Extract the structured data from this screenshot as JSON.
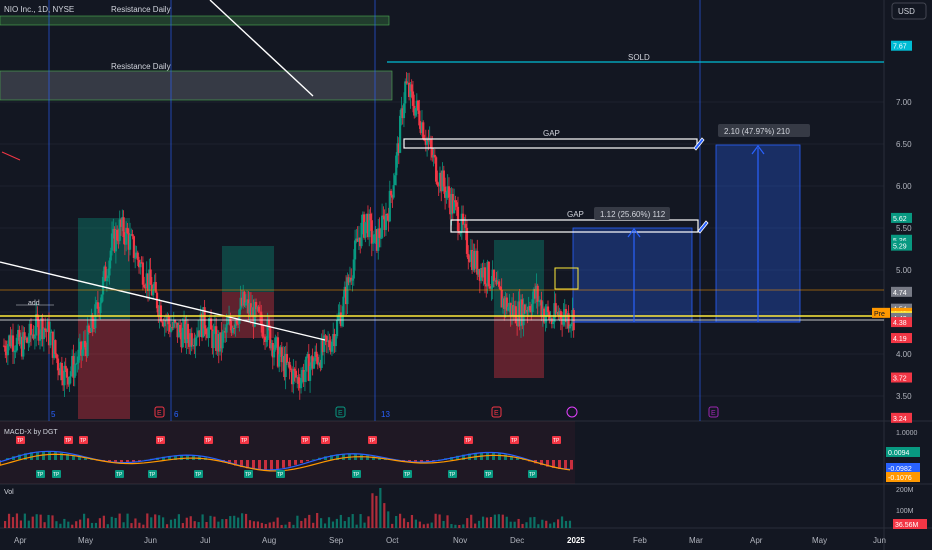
{
  "header": {
    "symbol": "NIO Inc., 1D, NYSE",
    "currency_button": "USD"
  },
  "chart_data": [
    {
      "type": "candlestick",
      "title": "NIO Inc., 1D, NYSE",
      "x_axis_labels": [
        "Apr",
        "May",
        "Jun",
        "Jul",
        "Aug",
        "Sep",
        "Oct",
        "Nov",
        "Dec",
        "2025",
        "Feb",
        "Mar",
        "Apr",
        "May",
        "Jun"
      ],
      "y_axis_ticks": [
        "7.00",
        "6.50",
        "6.00",
        "5.50",
        "5.00",
        "4.50",
        "4.00",
        "3.50"
      ],
      "ylim": [
        3.24,
        8.2
      ],
      "price_badges": [
        {
          "label": "7.67",
          "value": 7.67,
          "color": "#00bcd4"
        },
        {
          "label": "5.62",
          "value": 5.62,
          "color": "#089981"
        },
        {
          "label": "5.36",
          "value": 5.36,
          "color": "#089981"
        },
        {
          "label": "5.29",
          "value": 5.29,
          "color": "#089981"
        },
        {
          "label": "4.74",
          "value": 4.74,
          "color": "#787b86"
        },
        {
          "label": "4.54",
          "value": 4.54,
          "color": "#787b86"
        },
        {
          "label": "4.49",
          "value": 4.49,
          "color": "#ff9800",
          "tag": "Pre"
        },
        {
          "label": "4.45",
          "value": 4.45,
          "color": "#ffeb3b"
        },
        {
          "label": "4.43",
          "value": 4.43,
          "color": "#787b86"
        },
        {
          "label": "4.38",
          "value": 4.38,
          "color": "#f23645"
        },
        {
          "label": "4.19",
          "value": 4.19,
          "color": "#f23645"
        },
        {
          "label": "3.72",
          "value": 3.72,
          "color": "#f23645"
        },
        {
          "label": "3.24",
          "value": 3.24,
          "color": "#f23645"
        }
      ],
      "annotations": [
        {
          "text": "Resistance Daily"
        },
        {
          "text": "Resistance Daily"
        },
        {
          "text": "SOLD",
          "price": 7.67
        },
        {
          "text": "GAP",
          "price": 6.5
        },
        {
          "text": "GAP",
          "price": 5.5
        },
        {
          "text": "2.10 (47.97%) 210"
        },
        {
          "text": "1.12 (25.60%) 112"
        },
        {
          "text": "add"
        }
      ],
      "event_markers": [
        "5",
        "6",
        "13"
      ],
      "earnings_markers": [
        "E",
        "E",
        "E",
        "E"
      ],
      "close_approx": [
        4.1,
        4.2,
        4.1,
        4.15,
        4.3,
        4.35,
        4.2,
        3.9,
        3.75,
        3.85,
        4.0,
        4.2,
        4.5,
        4.9,
        5.3,
        5.5,
        5.4,
        5.2,
        5.0,
        4.8,
        4.6,
        4.4,
        4.3,
        4.25,
        4.2,
        4.3,
        4.4,
        4.2,
        4.1,
        4.3,
        4.45,
        4.6,
        4.5,
        4.4,
        4.3,
        4.1,
        3.9,
        3.8,
        3.7,
        3.8,
        3.9,
        4.0,
        4.1,
        4.3,
        4.6,
        5.0,
        5.4,
        5.6,
        5.3,
        5.5,
        5.8,
        6.4,
        7.2,
        7.0,
        6.8,
        6.5,
        6.2,
        6.0,
        5.8,
        5.6,
        5.3,
        5.1,
        5.0,
        4.9,
        4.7,
        4.6,
        4.5,
        4.5,
        4.6,
        4.7,
        4.5,
        4.4,
        4.5,
        4.45
      ]
    },
    {
      "type": "bar",
      "title": "MACD-X by DGT",
      "y_axis_ticks": [
        "1.0000"
      ],
      "value_badges": [
        {
          "label": "0.0094",
          "color": "#089981"
        },
        {
          "label": "-0.0982",
          "color": "#2962ff"
        },
        {
          "label": "-0.1076",
          "color": "#ff9800"
        }
      ],
      "signal_labels": [
        "TP",
        "TP",
        "TP",
        "TP",
        "TP",
        "TP",
        "TP",
        "TP",
        "TP",
        "TP",
        "TP",
        "TP",
        "TP",
        "TP",
        "TP",
        "TP",
        "TP",
        "TP",
        "TP",
        "TP",
        "TP",
        "TP",
        "TP",
        "TP"
      ]
    },
    {
      "type": "bar",
      "title": "Vol",
      "y_axis_ticks": [
        "200M",
        "100M"
      ],
      "value_badges": [
        {
          "label": "36.56M",
          "color": "#f23645"
        }
      ]
    }
  ]
}
